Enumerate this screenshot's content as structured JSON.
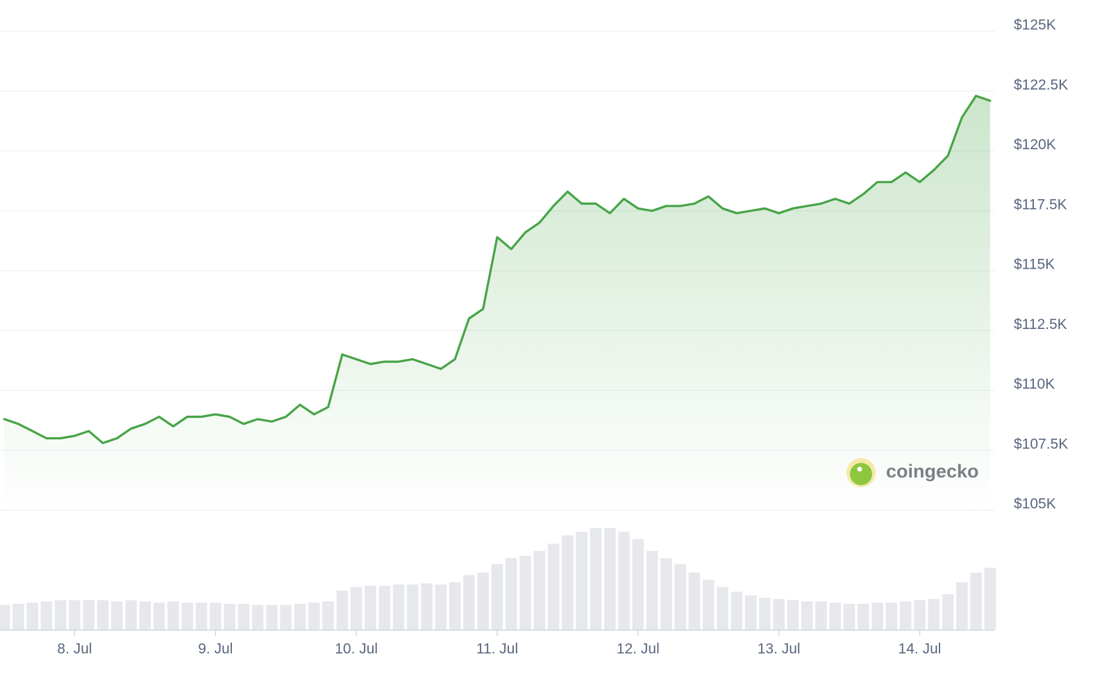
{
  "chart_data": {
    "type": "line",
    "x": [
      7.5,
      7.6,
      7.7,
      7.8,
      7.9,
      8,
      8.1,
      8.2,
      8.3,
      8.4,
      8.5,
      8.6,
      8.7,
      8.8,
      8.9,
      9,
      9.1,
      9.2,
      9.3,
      9.4,
      9.5,
      9.6,
      9.7,
      9.8,
      9.9,
      10,
      10.1,
      10.2,
      10.3,
      10.4,
      10.5,
      10.6,
      10.7,
      10.8,
      10.9,
      11,
      11.1,
      11.2,
      11.3,
      11.4,
      11.5,
      11.6,
      11.7,
      11.8,
      11.9,
      12,
      12.1,
      12.2,
      12.3,
      12.4,
      12.5,
      12.6,
      12.7,
      12.8,
      12.9,
      13,
      13.1,
      13.2,
      13.3,
      13.4,
      13.5,
      13.6,
      13.7,
      13.8,
      13.9,
      14,
      14.1,
      14.2,
      14.3,
      14.4,
      14.5
    ],
    "series": [
      {
        "color": "#47a447",
        "values": [
          108800,
          108600,
          108300,
          108000,
          108000,
          108100,
          108300,
          107800,
          108000,
          108400,
          108600,
          108900,
          108500,
          108900,
          108900,
          109000,
          108900,
          108600,
          108800,
          108700,
          108900,
          109400,
          109000,
          109300,
          111500,
          111300,
          111100,
          111200,
          111200,
          111300,
          111100,
          110900,
          111300,
          113000,
          113400,
          116400,
          115900,
          116600,
          117000,
          117700,
          118300,
          117800,
          117800,
          117400,
          118000,
          117600,
          117500,
          117700,
          117700,
          117800,
          118100,
          117600,
          117400,
          117500,
          117600,
          117400,
          117600,
          117700,
          117800,
          118000,
          117800,
          118200,
          118700,
          118700,
          119100,
          118700,
          119200,
          119800,
          121400,
          122300,
          122100
        ]
      },
      {
        "color": "#e6e8ec",
        "axis": "y2",
        "values": [
          21,
          22,
          23,
          24,
          25,
          25,
          25,
          25,
          24,
          25,
          24,
          23,
          24,
          23,
          23,
          23,
          22,
          22,
          21,
          21,
          21,
          22,
          23,
          24,
          33,
          36,
          37,
          37,
          38,
          38,
          39,
          38,
          40,
          46,
          48,
          55,
          60,
          62,
          66,
          72,
          79,
          82,
          85,
          85,
          82,
          76,
          66,
          60,
          55,
          48,
          42,
          36,
          32,
          29,
          27,
          26,
          25,
          24,
          24,
          23,
          22,
          22,
          23,
          23,
          24,
          25,
          26,
          30,
          40,
          48,
          52
        ]
      }
    ],
    "xlim": [
      7.47,
      14.53
    ],
    "xticks": [
      {
        "value": 8,
        "label": "8. Jul"
      },
      {
        "value": 9,
        "label": "9. Jul"
      },
      {
        "value": 10,
        "label": "10. Jul"
      },
      {
        "value": 11,
        "label": "11. Jul"
      },
      {
        "value": 12,
        "label": "12. Jul"
      },
      {
        "value": 13,
        "label": "13. Jul"
      },
      {
        "value": 14,
        "label": "14. Jul"
      }
    ],
    "ylim": [
      105000,
      125000
    ],
    "yticks": [
      {
        "value": 105000,
        "label": "$105K"
      },
      {
        "value": 107500,
        "label": "$107.5K"
      },
      {
        "value": 110000,
        "label": "$110K"
      },
      {
        "value": 112500,
        "label": "$112.5K"
      },
      {
        "value": 115000,
        "label": "$115K"
      },
      {
        "value": 117500,
        "label": "$117.5K"
      },
      {
        "value": 120000,
        "label": "$120K"
      },
      {
        "value": 122500,
        "label": "$122.5K"
      },
      {
        "value": 125000,
        "label": "$125K"
      }
    ],
    "y2lim": [
      0,
      100
    ],
    "grid": true,
    "watermark": "coingecko"
  }
}
